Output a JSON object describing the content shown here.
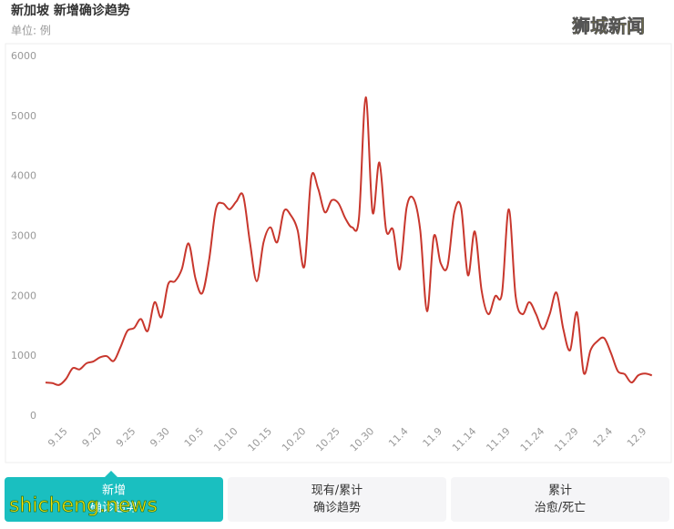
{
  "chart_data": {
    "type": "line",
    "title": "新加坡 新增确诊趋势",
    "subtitle": "单位: 例",
    "categories": [
      null,
      null,
      null,
      "9.15",
      null,
      null,
      null,
      null,
      "9.20",
      null,
      null,
      null,
      null,
      "9.25",
      null,
      null,
      null,
      null,
      "9.30",
      null,
      null,
      null,
      null,
      "10.5",
      null,
      null,
      null,
      null,
      "10.10",
      null,
      null,
      null,
      null,
      "10.15",
      null,
      null,
      null,
      null,
      "10.20",
      null,
      null,
      null,
      null,
      "10.25",
      null,
      null,
      null,
      null,
      "10.30",
      null,
      null,
      null,
      null,
      "11.4",
      null,
      null,
      null,
      null,
      "11.9",
      null,
      null,
      null,
      null,
      "11.14",
      null,
      null,
      null,
      null,
      "11.19",
      null,
      null,
      null,
      null,
      "11.24",
      null,
      null,
      null,
      null,
      "11.29",
      null,
      null,
      null,
      null,
      "12.4",
      null,
      null,
      null,
      null,
      "12.9",
      null
    ],
    "values": [
      560,
      550,
      520,
      620,
      800,
      780,
      880,
      910,
      980,
      1000,
      920,
      1150,
      1420,
      1470,
      1620,
      1420,
      1900,
      1650,
      2200,
      2250,
      2450,
      2880,
      2300,
      2050,
      2600,
      3450,
      3550,
      3450,
      3580,
      3680,
      2900,
      2250,
      2900,
      3150,
      2900,
      3420,
      3350,
      3100,
      2500,
      3980,
      3800,
      3400,
      3600,
      3550,
      3300,
      3150,
      3300,
      5320,
      3400,
      4230,
      3100,
      3110,
      2450,
      3480,
      3630,
      3100,
      1750,
      3000,
      2550,
      2500,
      3400,
      3480,
      2350,
      3080,
      2100,
      1700,
      2000,
      2050,
      3450,
      2000,
      1700,
      1900,
      1700,
      1450,
      1700,
      2060,
      1450,
      1100,
      1730,
      720,
      1100,
      1250,
      1300,
      1050,
      750,
      700,
      560,
      680,
      710,
      680
    ],
    "color": "#c8372d",
    "ylim": [
      0,
      6000
    ],
    "yticks": [
      0,
      1000,
      2000,
      3000,
      4000,
      5000,
      6000
    ],
    "grid": false
  },
  "tabs": [
    {
      "line1": "新增",
      "line2": "确诊趋势"
    },
    {
      "line1": "现有/累计",
      "line2": "确诊趋势"
    },
    {
      "line1": "累计",
      "line2": "治愈/死亡"
    }
  ],
  "watermarks": [
    "狮城新闻",
    "shicheng.news"
  ]
}
